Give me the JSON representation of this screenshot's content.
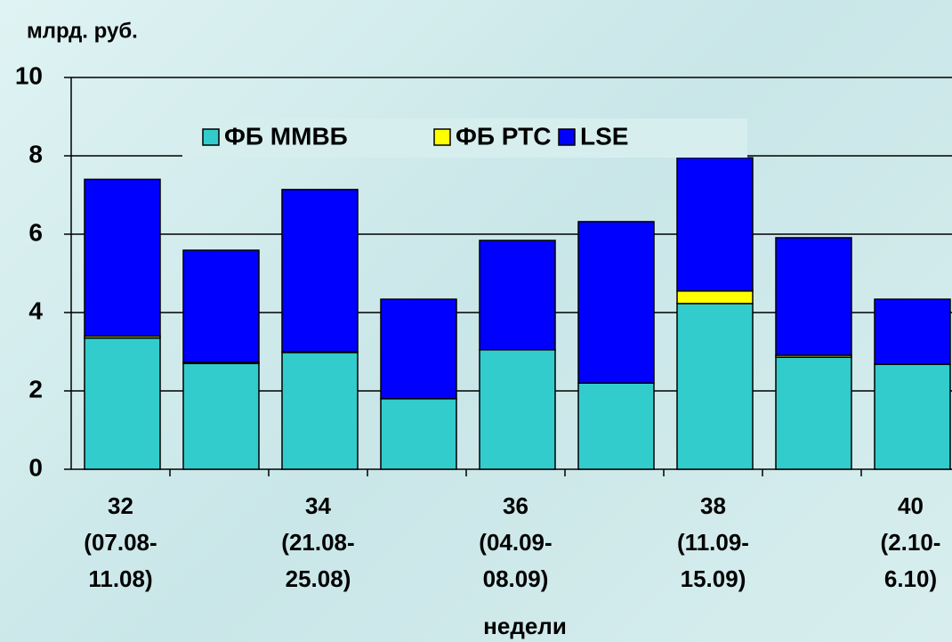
{
  "chart_data": {
    "type": "stacked_bar",
    "y_axis_label": "млрд. руб.",
    "x_axis_label": "недели",
    "categories": [
      "32\n(07.08-\n11.08)",
      null,
      "34\n(21.08-\n25.08)",
      null,
      "36\n(04.09-\n08.09)",
      null,
      "38\n(11.09-\n15.09)",
      null,
      "40\n(2.10-\n6.10)"
    ],
    "series": [
      {
        "name": "ФБ ММВБ",
        "color": "#33cccc",
        "values": [
          3.35,
          2.7,
          2.98,
          1.8,
          3.05,
          2.2,
          4.23,
          2.86,
          2.68
        ]
      },
      {
        "name": "ФБ РТС",
        "color": "#ffff00",
        "values": [
          0.05,
          0.03,
          0.02,
          0,
          0,
          0,
          0.32,
          0.05,
          0
        ]
      },
      {
        "name": "LSE",
        "color": "#0000ff",
        "values": [
          4.0,
          2.86,
          4.14,
          2.54,
          2.79,
          4.12,
          3.4,
          3.0,
          1.66
        ]
      }
    ],
    "ylim": [
      0,
      10
    ],
    "yticks": [
      0,
      2,
      4,
      6,
      8,
      10
    ],
    "grid": true
  }
}
